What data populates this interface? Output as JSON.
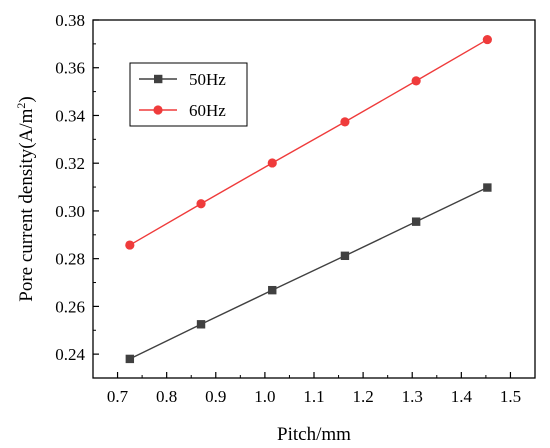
{
  "chart_data": {
    "type": "line",
    "xlabel": "Pitch/mm",
    "ylabel": "Pore current density(A/m²)",
    "ylabel_main": "Pore current density(A/m",
    "ylabel_sup": "2",
    "ylabel_close": ")",
    "xlim": [
      0.65,
      1.55
    ],
    "ylim": [
      0.23,
      0.38
    ],
    "xticks": [
      0.7,
      0.8,
      0.9,
      1.0,
      1.1,
      1.2,
      1.3,
      1.4,
      1.5
    ],
    "xtick_labels": [
      "0.7",
      "0.8",
      "0.9",
      "1.0",
      "1.1",
      "1.2",
      "1.3",
      "1.4",
      "1.5"
    ],
    "yticks": [
      0.24,
      0.26,
      0.28,
      0.3,
      0.32,
      0.34,
      0.36,
      0.38
    ],
    "ytick_labels": [
      "0.24",
      "0.26",
      "0.28",
      "0.30",
      "0.32",
      "0.34",
      "0.36",
      "0.38"
    ],
    "grid": false,
    "legend_position": "top-left",
    "x": [
      0.725,
      0.87,
      1.015,
      1.163,
      1.308,
      1.453
    ],
    "series": [
      {
        "name": "50Hz",
        "color": "#404040",
        "marker": "square",
        "values": [
          0.238,
          0.2525,
          0.2668,
          0.2812,
          0.2955,
          0.3098
        ]
      },
      {
        "name": "60Hz",
        "color": "#ef3b3b",
        "marker": "circle",
        "values": [
          0.2857,
          0.303,
          0.3201,
          0.3373,
          0.3545,
          0.3718
        ]
      }
    ]
  }
}
